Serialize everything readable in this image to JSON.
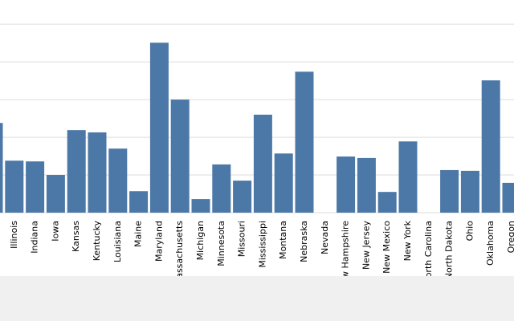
{
  "chart_data": {
    "type": "bar",
    "categories": [
      null,
      "Illinois",
      "Indiana",
      "Iowa",
      "Kansas",
      "Kentucky",
      "Louisiana",
      "Maine",
      "Maryland",
      "Massachusetts",
      "Michigan",
      "Minnesota",
      "Missouri",
      "Mississippi",
      "Montana",
      "Nebraska",
      "Nevada",
      "New Hampshire",
      "New Jersey",
      "New Mexico",
      "New York",
      "North Carolina",
      "North Dakota",
      "Ohio",
      "Oklahoma",
      "Oregon"
    ],
    "values": [
      2.38,
      1.38,
      1.36,
      1.0,
      2.19,
      2.13,
      1.7,
      0.57,
      4.51,
      3.0,
      0.36,
      1.28,
      0.85,
      2.6,
      1.57,
      3.74,
      0,
      1.49,
      1.45,
      0.55,
      1.89,
      0,
      1.13,
      1.11,
      3.51,
      0.79
    ],
    "color": "#4c78a8",
    "ylim": [
      0,
      5.6
    ],
    "yticks": [
      0,
      1,
      2,
      3,
      4,
      5
    ],
    "grid": true
  }
}
